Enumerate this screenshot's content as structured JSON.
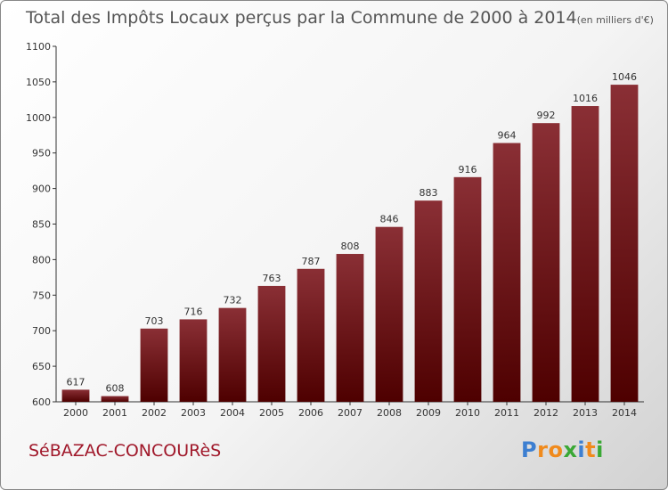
{
  "chart_data": {
    "type": "bar",
    "title": "Total des Impôts Locaux perçus par la Commune de 2000 à 2014",
    "subtitle": "(en milliers d'€)",
    "categories": [
      "2000",
      "2001",
      "2002",
      "2003",
      "2004",
      "2005",
      "2006",
      "2007",
      "2008",
      "2009",
      "2010",
      "2011",
      "2012",
      "2013",
      "2014"
    ],
    "values": [
      617,
      608,
      703,
      716,
      732,
      763,
      787,
      808,
      846,
      883,
      916,
      964,
      992,
      1016,
      1046
    ],
    "ylim": [
      600,
      1100
    ],
    "yticks": [
      600,
      650,
      700,
      750,
      800,
      850,
      900,
      950,
      1000,
      1050,
      1100
    ],
    "xlabel": "",
    "ylabel": "",
    "grid": false,
    "bar_color_top": "#8a2f35",
    "bar_color_bottom": "#4e0000"
  },
  "commune": "SéBAZAC-CONCOURèS",
  "brand": {
    "text": "Proxiti",
    "letters": [
      {
        "ch": "P",
        "color": "#3d7fd1"
      },
      {
        "ch": "r",
        "color": "#f08a1c"
      },
      {
        "ch": "o",
        "color": "#f08a1c"
      },
      {
        "ch": "x",
        "color": "#3aa835"
      },
      {
        "ch": "i",
        "color": "#3d7fd1"
      },
      {
        "ch": "t",
        "color": "#f08a1c"
      },
      {
        "ch": "i",
        "color": "#3aa835"
      }
    ]
  }
}
